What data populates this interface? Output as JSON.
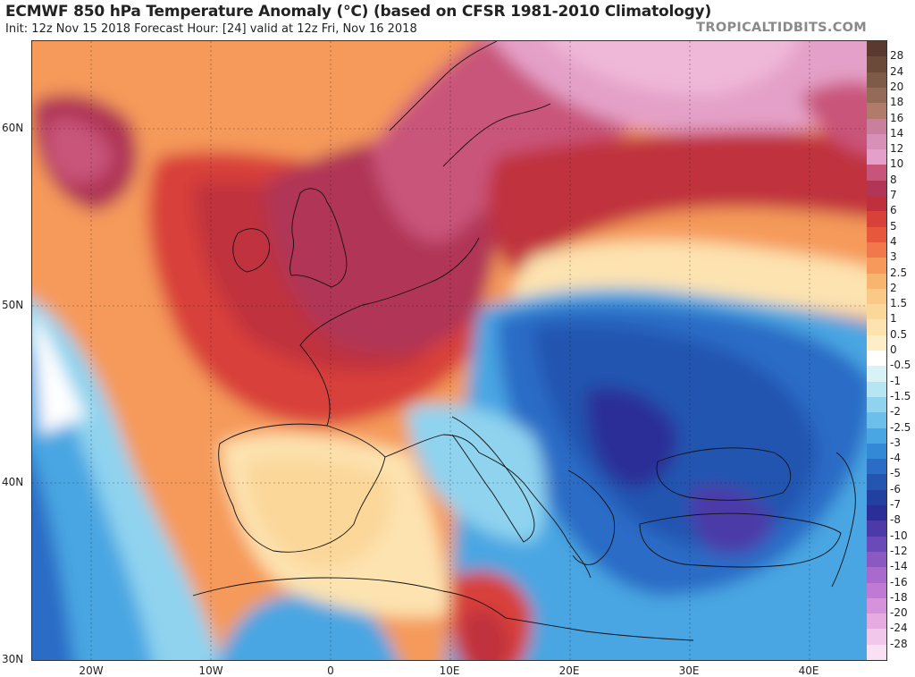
{
  "header": {
    "title": "ECMWF 850 hPa Temperature Anomaly (°C) (based on CFSR 1981-2010 Climatology)",
    "subtitle": "Init: 12z Nov 15 2018   Forecast Hour: [24]   valid at 12z Fri, Nov 16 2018",
    "brand": "TROPICALTIDBITS.COM"
  },
  "axes": {
    "lat_labels": [
      "60N",
      "50N",
      "40N",
      "30N"
    ],
    "lon_labels": [
      "20W",
      "10W",
      "0",
      "10E",
      "20E",
      "30E",
      "40E"
    ]
  },
  "colorbar": {
    "labels": [
      "28",
      "24",
      "20",
      "18",
      "16",
      "14",
      "12",
      "10",
      "8",
      "7",
      "6",
      "5",
      "4",
      "3",
      "2.5",
      "2",
      "1.5",
      "1",
      "0.5",
      "0",
      "-0.5",
      "-1",
      "-1.5",
      "-2",
      "-2.5",
      "-3",
      "-4",
      "-5",
      "-6",
      "-7",
      "-8",
      "-10",
      "-12",
      "-14",
      "-16",
      "-18",
      "-20",
      "-24",
      "-28"
    ],
    "colors": [
      "#6b4a3a",
      "#7e5a48",
      "#946b58",
      "#b07b6a",
      "#c97f9e",
      "#d88fb8",
      "#e4a0c8",
      "#c9547a",
      "#b03557",
      "#c0303c",
      "#d8413a",
      "#e7583a",
      "#f0784a",
      "#f59a5a",
      "#f7b570",
      "#fac985",
      "#fbd79a",
      "#fde3b0",
      "#feeec8",
      "#ffffff",
      "#d8f2f6",
      "#b6e6f2",
      "#8fd3ef",
      "#6bbfea",
      "#4aa6e2",
      "#3389d6",
      "#2a6cc6",
      "#2455b0",
      "#2140a0",
      "#2a2e96",
      "#4b3aa8",
      "#6a4ab8",
      "#8a5ac2",
      "#a86acc",
      "#c07ad4",
      "#d692da",
      "#e6ace2",
      "#f2c8ea",
      "#f9e0f2"
    ]
  },
  "map_colors": {
    "ocean_warm": "#f5b06b",
    "deep_red": "#c0303c",
    "maroon": "#b03557",
    "pink": "#e4a0c8",
    "light_pink": "#f0b8d8",
    "orange": "#f0784a",
    "light_orange": "#fbd79a",
    "cream": "#fde3b0",
    "white": "#ffffff",
    "light_blue": "#8fd3ef",
    "mid_blue": "#4aa6e2",
    "blue": "#2a6cc6",
    "dark_blue": "#2140a0",
    "purple": "#4b3aa8"
  }
}
